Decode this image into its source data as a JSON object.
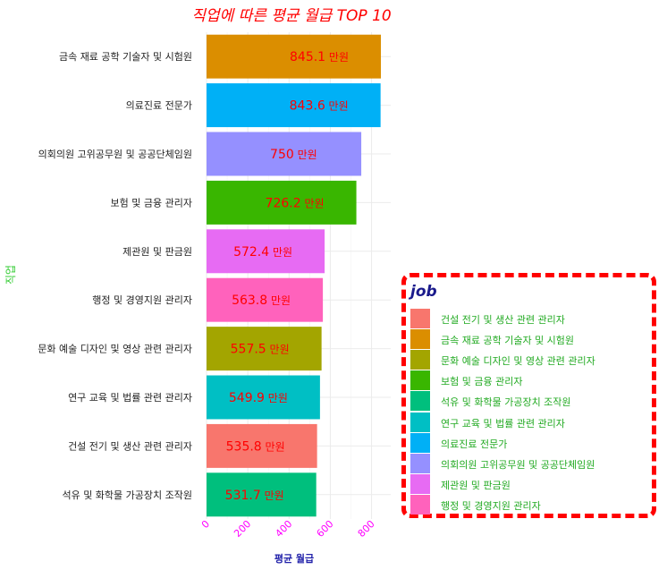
{
  "chart_data": {
    "type": "bar",
    "orientation": "horizontal",
    "title": "직업에 따른 평균 월급 TOP 10",
    "xlabel": "평균 월급",
    "ylabel": "직업",
    "xlim": [
      0,
      860
    ],
    "xticks": [
      "0",
      "200",
      "400",
      "600",
      "800"
    ],
    "xtick_values": [
      0,
      200,
      400,
      600,
      800
    ],
    "value_suffix": " 만원",
    "grid": true,
    "bars": [
      {
        "job": "금속 재료 공학 기술자 및 시험원",
        "value": 845.1,
        "label": "845.1",
        "color": "#DB8E00"
      },
      {
        "job": "의료진료 전문가",
        "value": 843.6,
        "label": "843.6",
        "color": "#00B0F6"
      },
      {
        "job": "의회의원 고위공무원 및 공공단체임원",
        "value": 750,
        "label": "750",
        "color": "#9590FF"
      },
      {
        "job": "보험 및 금융 관리자",
        "value": 726.2,
        "label": "726.2",
        "color": "#39B600"
      },
      {
        "job": "제관원 및 판금원",
        "value": 572.4,
        "label": "572.4",
        "color": "#E76BF3"
      },
      {
        "job": "행정 및 경영지원 관리자",
        "value": 563.8,
        "label": "563.8",
        "color": "#FF62BC"
      },
      {
        "job": "문화 예술 디자인 및 영상 관련 관리자",
        "value": 557.5,
        "label": "557.5",
        "color": "#A3A500"
      },
      {
        "job": "연구 교육 및 법률 관련 관리자",
        "value": 549.9,
        "label": "549.9",
        "color": "#00BFC4"
      },
      {
        "job": "건설 전기 및 생산 관련 관리자",
        "value": 535.8,
        "label": "535.8",
        "color": "#F8766D"
      },
      {
        "job": "석유 및 화학물 가공장치 조작원",
        "value": 531.7,
        "label": "531.7",
        "color": "#00BF7D"
      }
    ],
    "legend": {
      "title": "job",
      "position": "right",
      "items": [
        {
          "label": "건설 전기 및 생산 관련 관리자",
          "color": "#F8766D"
        },
        {
          "label": "금속 재료 공학 기술자 및 시험원",
          "color": "#DB8E00"
        },
        {
          "label": "문화 예술 디자인 및 영상 관련 관리자",
          "color": "#A3A500"
        },
        {
          "label": "보험 및 금융 관리자",
          "color": "#39B600"
        },
        {
          "label": "석유 및 화학물 가공장치 조작원",
          "color": "#00BF7D"
        },
        {
          "label": "연구 교육 및 법률 관련 관리자",
          "color": "#00BFC4"
        },
        {
          "label": "의료진료 전문가",
          "color": "#00B0F6"
        },
        {
          "label": "의회의원 고위공무원 및 공공단체임원",
          "color": "#9590FF"
        },
        {
          "label": "제관원 및 판금원",
          "color": "#E76BF3"
        },
        {
          "label": "행정 및 경영지원 관리자",
          "color": "#FF62BC"
        }
      ]
    }
  }
}
